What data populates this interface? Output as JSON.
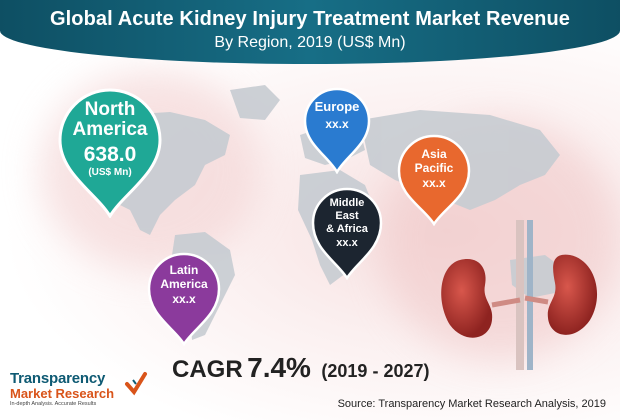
{
  "title": {
    "main": "Global Acute Kidney Injury Treatment Market Revenue",
    "sub": "By Region, 2019 (US$ Mn)"
  },
  "regions": {
    "north_america": {
      "name_line1": "North",
      "name_line2": "America",
      "value": "638.0",
      "unit": "(US$ Mn)",
      "color": "#1fa896"
    },
    "europe": {
      "name": "Europe",
      "value": "xx.x",
      "color": "#2a7bd0"
    },
    "asia_pacific": {
      "name_line1": "Asia",
      "name_line2": "Pacific",
      "value": "xx.x",
      "color": "#e8682e"
    },
    "middle_east_africa": {
      "name_line1": "Middle",
      "name_line2": "East",
      "name_line3": "& Africa",
      "value": "xx.x",
      "color": "#1c2530"
    },
    "latin_america": {
      "name_line1": "Latin",
      "name_line2": "America",
      "value": "xx.x",
      "color": "#8b3a9c"
    }
  },
  "cagr": {
    "label": "CAGR",
    "value": "7.4%",
    "period": "(2019 - 2027)"
  },
  "logo": {
    "line1": "Transparency",
    "line2": "Market Research",
    "tagline": "In-depth Analysis. Accurate Results"
  },
  "source": "Source: Transparency Market Research Analysis, 2019",
  "colors": {
    "title_bar": "#0e4f63",
    "map": "#c9ced3",
    "kidney": "#b8322c"
  },
  "icons": [
    "map-pin-icon",
    "check-icon",
    "kidney-illustration"
  ]
}
